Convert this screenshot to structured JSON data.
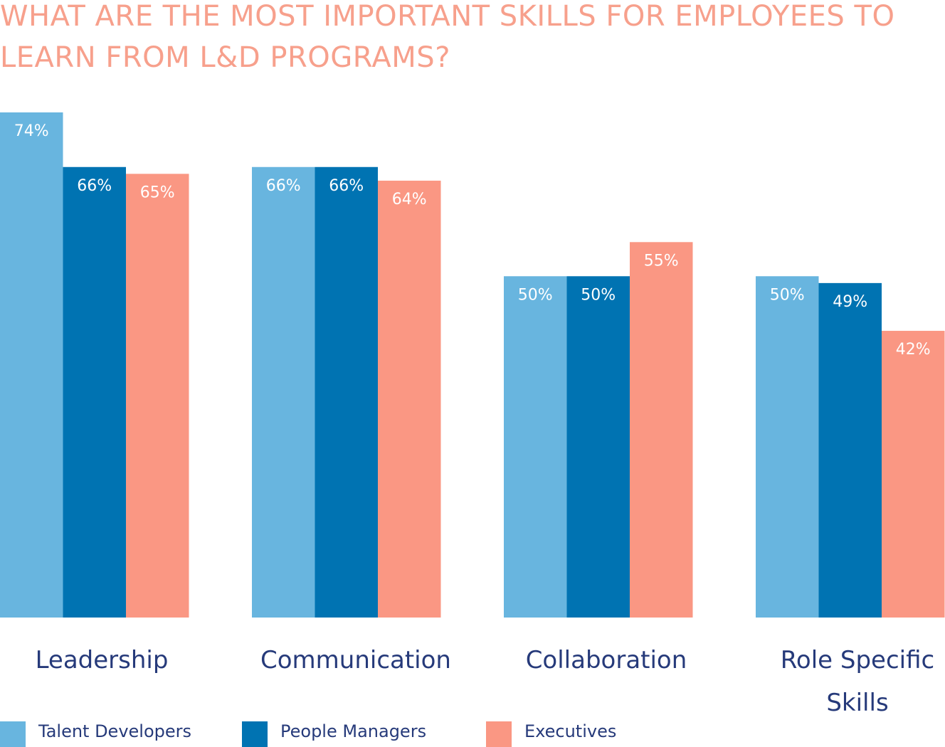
{
  "chart_data": {
    "type": "bar",
    "title": "WHAT ARE THE MOST IMPORTANT SKILLS FOR EMPLOYEES TO LEARN FROM L&D PROGRAMS?",
    "categories": [
      "Leadership",
      "Communication",
      "Collaboration",
      "Role Specific Skills"
    ],
    "series": [
      {
        "name": "Talent Developers",
        "color": "#68B5DF",
        "values": [
          74,
          66,
          50,
          50
        ],
        "labels": [
          "74%",
          "66%",
          "50%",
          "50%"
        ]
      },
      {
        "name": "People Managers",
        "color": "#0073B2",
        "values": [
          66,
          66,
          50,
          49
        ],
        "labels": [
          "66%",
          "66%",
          "50%",
          "49%"
        ]
      },
      {
        "name": "Executives",
        "color": "#FA9783",
        "values": [
          65,
          64,
          55,
          42
        ],
        "labels": [
          "65%",
          "64%",
          "55%",
          "42%"
        ]
      }
    ],
    "value_unit": "%",
    "ylim": [
      0,
      74
    ],
    "grid": false,
    "legend_position": "bottom-left"
  },
  "colors": {
    "title": "#F7A08C",
    "category_text": "#263A7A",
    "bar_label_text": "#FFFFFF"
  }
}
